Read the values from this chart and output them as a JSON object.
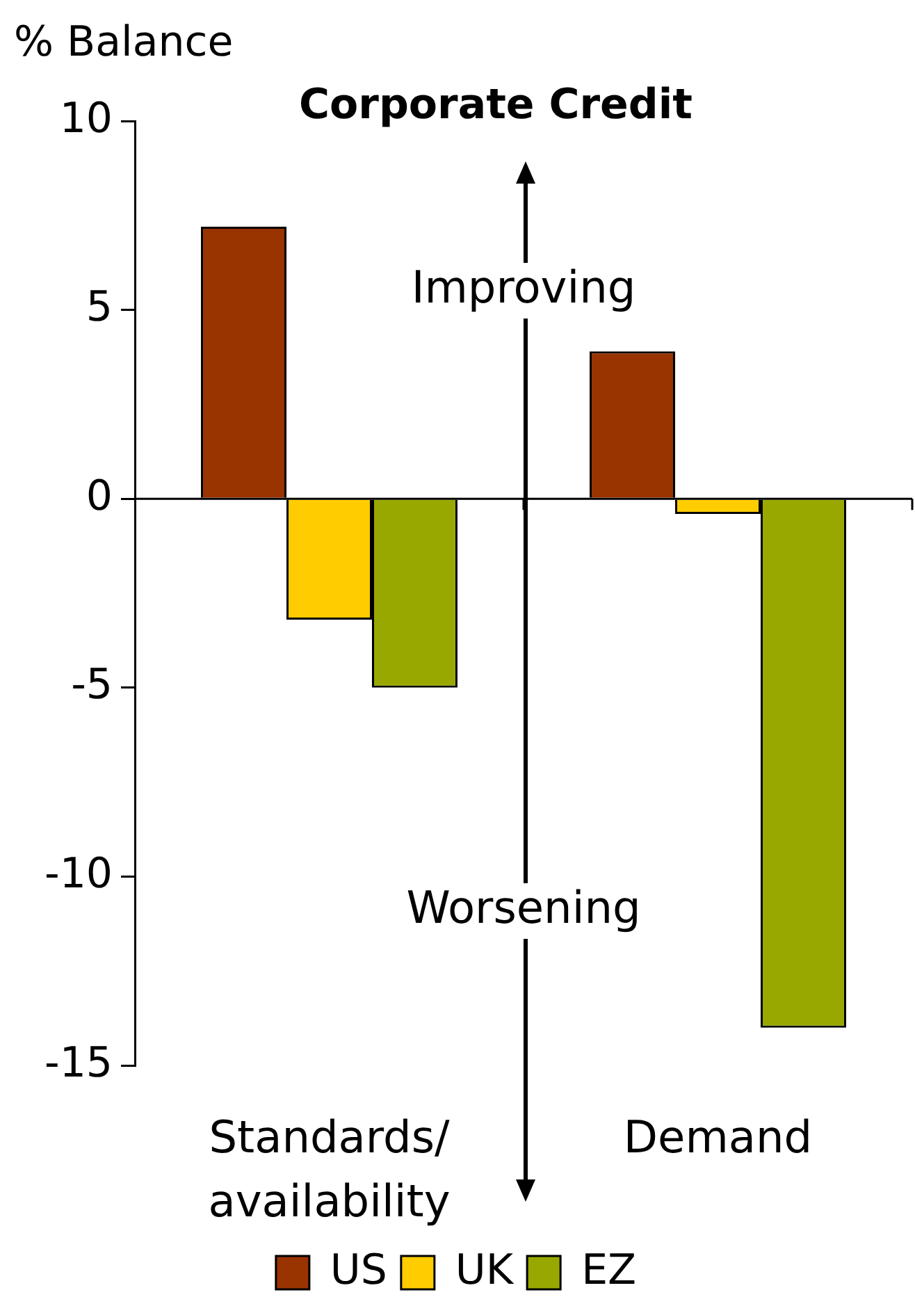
{
  "chart_data": {
    "type": "bar",
    "title": "Corporate Credit",
    "ylabel": "% Balance",
    "categories": [
      "Standards/ availability",
      "Demand"
    ],
    "series": [
      {
        "name": "US",
        "color": "#993300",
        "values": [
          7.2,
          3.9
        ]
      },
      {
        "name": "UK",
        "color": "#ffcc00",
        "values": [
          -3.2,
          -0.4
        ]
      },
      {
        "name": "EZ",
        "color": "#99a800",
        "values": [
          -5,
          -14
        ]
      }
    ],
    "ylim": [
      -15,
      10
    ],
    "yticks": [
      -15,
      -10,
      -5,
      0,
      5,
      10
    ],
    "legend": "bottom",
    "annotations": [
      "Improving",
      "Worsening"
    ]
  }
}
